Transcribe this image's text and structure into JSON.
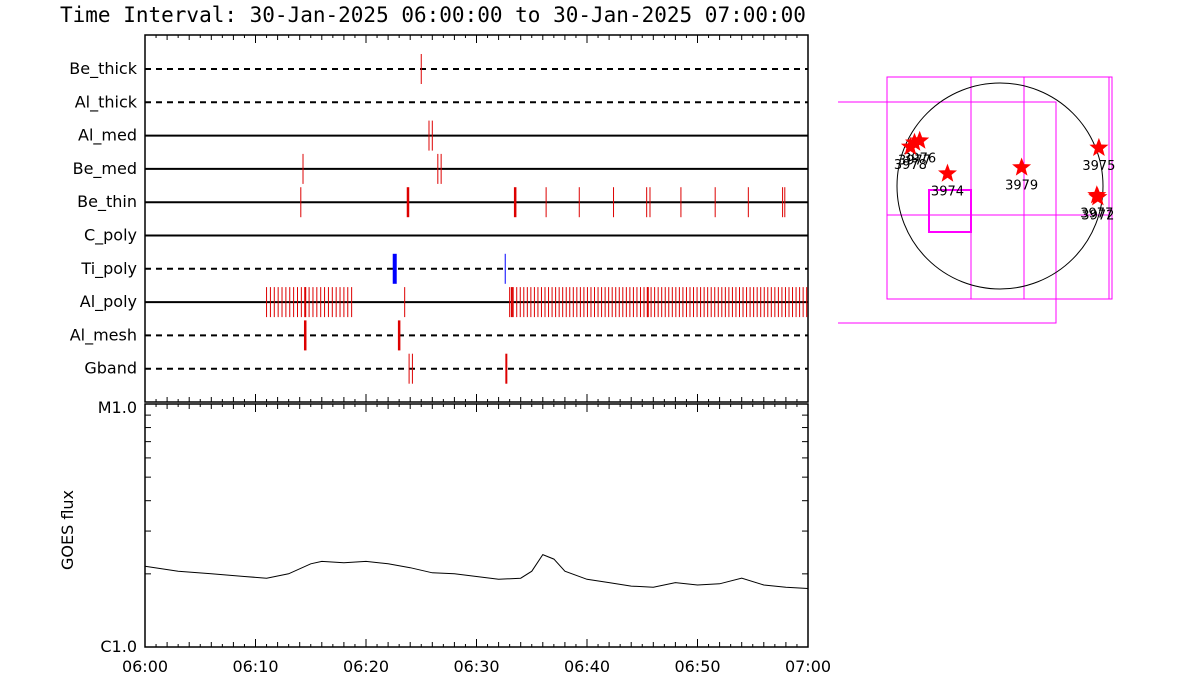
{
  "header": {
    "title": "Time Interval: 30-Jan-2025 06:00:00 to 30-Jan-2025 07:00:00"
  },
  "colors": {
    "magenta": "#ff00ff",
    "red": "#dd0000",
    "blue": "#0000ff",
    "star": "#ff0000"
  },
  "chart_data": [
    {
      "type": "timeline",
      "x_range_min": [
        0,
        60
      ],
      "channels": [
        {
          "name": "Be_thick",
          "style": "dashed",
          "events": [
            {
              "t": 25.0,
              "c": "red",
              "w": 1
            }
          ]
        },
        {
          "name": "Al_thick",
          "style": "dashed",
          "events": []
        },
        {
          "name": "Al_med",
          "style": "solid",
          "events": [
            {
              "t": 25.7,
              "c": "red",
              "w": 1
            },
            {
              "t": 26.0,
              "c": "red",
              "w": 1
            }
          ]
        },
        {
          "name": "Be_med",
          "style": "solid",
          "events": [
            {
              "t": 14.3,
              "c": "red",
              "w": 1
            },
            {
              "t": 26.5,
              "c": "red",
              "w": 1
            },
            {
              "t": 26.8,
              "c": "red",
              "w": 1
            }
          ]
        },
        {
          "name": "Be_thin",
          "style": "solid",
          "events": [
            {
              "t": 14.1,
              "c": "red",
              "w": 1
            },
            {
              "t": 23.8,
              "c": "red",
              "w": 2.5
            },
            {
              "t": 33.5,
              "c": "red",
              "w": 2.5
            },
            {
              "t": 36.3,
              "c": "red",
              "w": 1
            },
            {
              "t": 39.3,
              "c": "red",
              "w": 1
            },
            {
              "t": 42.4,
              "c": "red",
              "w": 1
            },
            {
              "t": 45.4,
              "c": "red",
              "w": 1
            },
            {
              "t": 45.7,
              "c": "red",
              "w": 1
            },
            {
              "t": 48.5,
              "c": "red",
              "w": 1
            },
            {
              "t": 51.6,
              "c": "red",
              "w": 1
            },
            {
              "t": 54.6,
              "c": "red",
              "w": 1
            },
            {
              "t": 57.7,
              "c": "red",
              "w": 1
            },
            {
              "t": 57.9,
              "c": "red",
              "w": 1
            }
          ]
        },
        {
          "name": "C_poly",
          "style": "solid",
          "events": []
        },
        {
          "name": "Ti_poly",
          "style": "dashed",
          "events": [
            {
              "t": 22.6,
              "c": "blue",
              "w": 4
            },
            {
              "t": 32.6,
              "c": "blue",
              "w": 1
            }
          ]
        },
        {
          "name": "Al_poly",
          "style": "solid",
          "clusters": [
            {
              "start": 11.0,
              "end": 19.0,
              "step": 0.35
            },
            {
              "start": 33.0,
              "end": 60.0,
              "step": 0.32
            }
          ],
          "events": [
            {
              "t": 23.5,
              "c": "red",
              "w": 1
            },
            {
              "t": 14.5,
              "c": "red",
              "w": 2
            },
            {
              "t": 33.2,
              "c": "red",
              "w": 2
            },
            {
              "t": 45.5,
              "c": "red",
              "w": 2
            }
          ]
        },
        {
          "name": "Al_mesh",
          "style": "dashed",
          "events": [
            {
              "t": 14.5,
              "c": "red",
              "w": 2.5
            },
            {
              "t": 23.0,
              "c": "red",
              "w": 2.5
            }
          ]
        },
        {
          "name": "Gband",
          "style": "dashed",
          "events": [
            {
              "t": 23.9,
              "c": "red",
              "w": 1
            },
            {
              "t": 24.2,
              "c": "red",
              "w": 1
            },
            {
              "t": 32.7,
              "c": "red",
              "w": 2
            }
          ]
        }
      ]
    },
    {
      "type": "line",
      "ylabel": "GOES flux",
      "y_ticks": [
        "M1.0",
        "C1.0"
      ],
      "x_ticks": [
        "06:00",
        "06:10",
        "06:20",
        "06:30",
        "06:40",
        "06:50",
        "07:00"
      ],
      "y_range_log": [
        -6,
        -5
      ],
      "x": [
        0,
        3,
        6,
        9,
        11,
        13,
        15,
        16,
        18,
        20,
        22,
        24,
        26,
        28,
        30,
        32,
        34,
        35,
        36,
        37,
        38,
        40,
        42,
        44,
        46,
        48,
        50,
        52,
        54,
        56,
        58,
        60
      ],
      "y": [
        2.15e-06,
        2.05e-06,
        2e-06,
        1.95e-06,
        1.92e-06,
        2e-06,
        2.2e-06,
        2.25e-06,
        2.22e-06,
        2.25e-06,
        2.2e-06,
        2.12e-06,
        2.02e-06,
        2e-06,
        1.95e-06,
        1.9e-06,
        1.92e-06,
        2.05e-06,
        2.4e-06,
        2.3e-06,
        2.05e-06,
        1.9e-06,
        1.84e-06,
        1.78e-06,
        1.76e-06,
        1.84e-06,
        1.8e-06,
        1.82e-06,
        1.92e-06,
        1.8e-06,
        1.76e-06,
        1.74e-06
      ]
    },
    {
      "type": "scatter",
      "points": [
        {
          "label": "3977",
          "x": -830,
          "y": 420
        },
        {
          "label": "3976",
          "x": -780,
          "y": 440
        },
        {
          "label": "3978",
          "x": -870,
          "y": 380
        },
        {
          "label": "3975",
          "x": 960,
          "y": 370
        },
        {
          "label": "3974",
          "x": -510,
          "y": 120
        },
        {
          "label": "3979",
          "x": 210,
          "y": 180
        },
        {
          "label": "3977",
          "x": 940,
          "y": -90
        },
        {
          "label": "3972",
          "x": 950,
          "y": -110
        }
      ]
    }
  ]
}
